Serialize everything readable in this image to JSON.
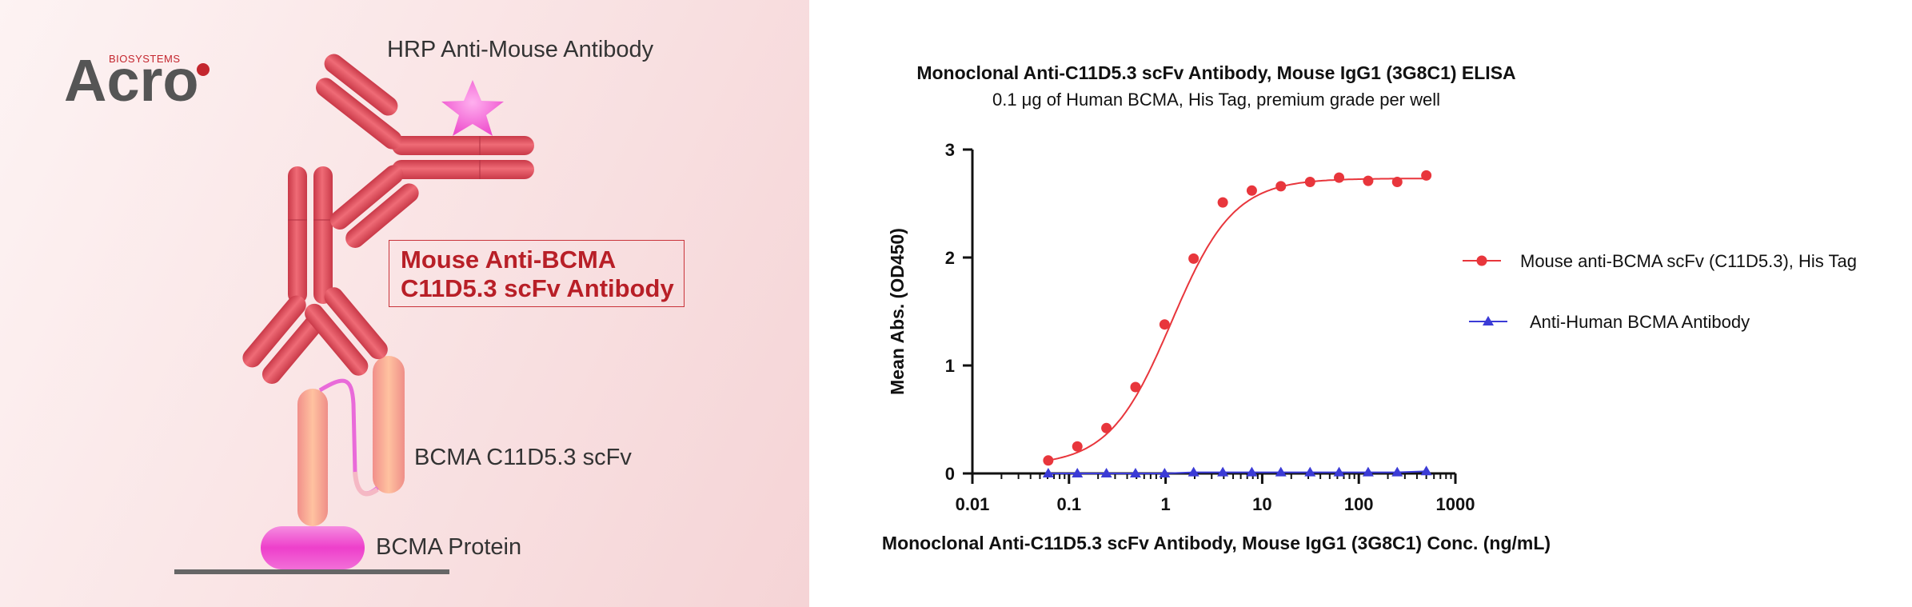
{
  "brand": {
    "name": "Acro",
    "tagline": "BIOSYSTEMS",
    "accent": "#c4262e"
  },
  "diagram": {
    "secondary_label": "HRP Anti-Mouse Antibody",
    "primary_label_line1": "Mouse Anti-BCMA",
    "primary_label_line2": "C11D5.3 scFv Antibody",
    "scfv_label": "BCMA C11D5.3 scFv",
    "protein_label": "BCMA Protein",
    "colors": {
      "antibody": "#e0505c",
      "scfv": "#f6a08a",
      "protein": "#ee40c8",
      "star": "#f060d0"
    }
  },
  "chart_data": {
    "type": "scatter",
    "title": "Monoclonal Anti-C11D5.3 scFv Antibody, Mouse IgG1 (3G8C1) ELISA",
    "subtitle": "0.1 μg of Human BCMA, His Tag, premium grade per well",
    "xlabel": "Monoclonal Anti-C11D5.3 scFv Antibody, Mouse IgG1 (3G8C1) Conc. (ng/mL)",
    "ylabel": "Mean Abs. (OD450)",
    "x_scale": "log",
    "xlim": [
      0.01,
      1000
    ],
    "ylim": [
      0,
      3
    ],
    "x_ticks": [
      0.01,
      0.1,
      1,
      10,
      100,
      1000
    ],
    "x_tick_labels": [
      "0.01",
      "0.1",
      "1",
      "10",
      "100",
      "1000"
    ],
    "y_ticks": [
      0,
      1,
      2,
      3
    ],
    "y_tick_labels": [
      "0",
      "1",
      "2",
      "3"
    ],
    "grid": false,
    "legend_position": "right",
    "series": [
      {
        "name": "Mouse anti-BCMA scFv (C11D5.3), His Tag",
        "color": "#e8363c",
        "marker": "circle",
        "fit": "sigmoid",
        "x": [
          0.061,
          0.122,
          0.244,
          0.488,
          0.977,
          1.95,
          3.91,
          7.81,
          15.6,
          31.3,
          62.5,
          125,
          250,
          500
        ],
        "y": [
          0.12,
          0.25,
          0.42,
          0.8,
          1.38,
          1.99,
          2.51,
          2.62,
          2.66,
          2.7,
          2.74,
          2.71,
          2.7,
          2.76
        ]
      },
      {
        "name": "Anti-Human BCMA Antibody",
        "color": "#3b3bd6",
        "marker": "triangle",
        "fit": "line",
        "x": [
          0.061,
          0.122,
          0.244,
          0.488,
          0.977,
          1.95,
          3.91,
          7.81,
          15.6,
          31.3,
          62.5,
          125,
          250,
          500
        ],
        "y": [
          0.0,
          0.0,
          0.0,
          0.0,
          0.0,
          0.01,
          0.01,
          0.01,
          0.01,
          0.01,
          0.01,
          0.01,
          0.01,
          0.02
        ]
      }
    ]
  }
}
